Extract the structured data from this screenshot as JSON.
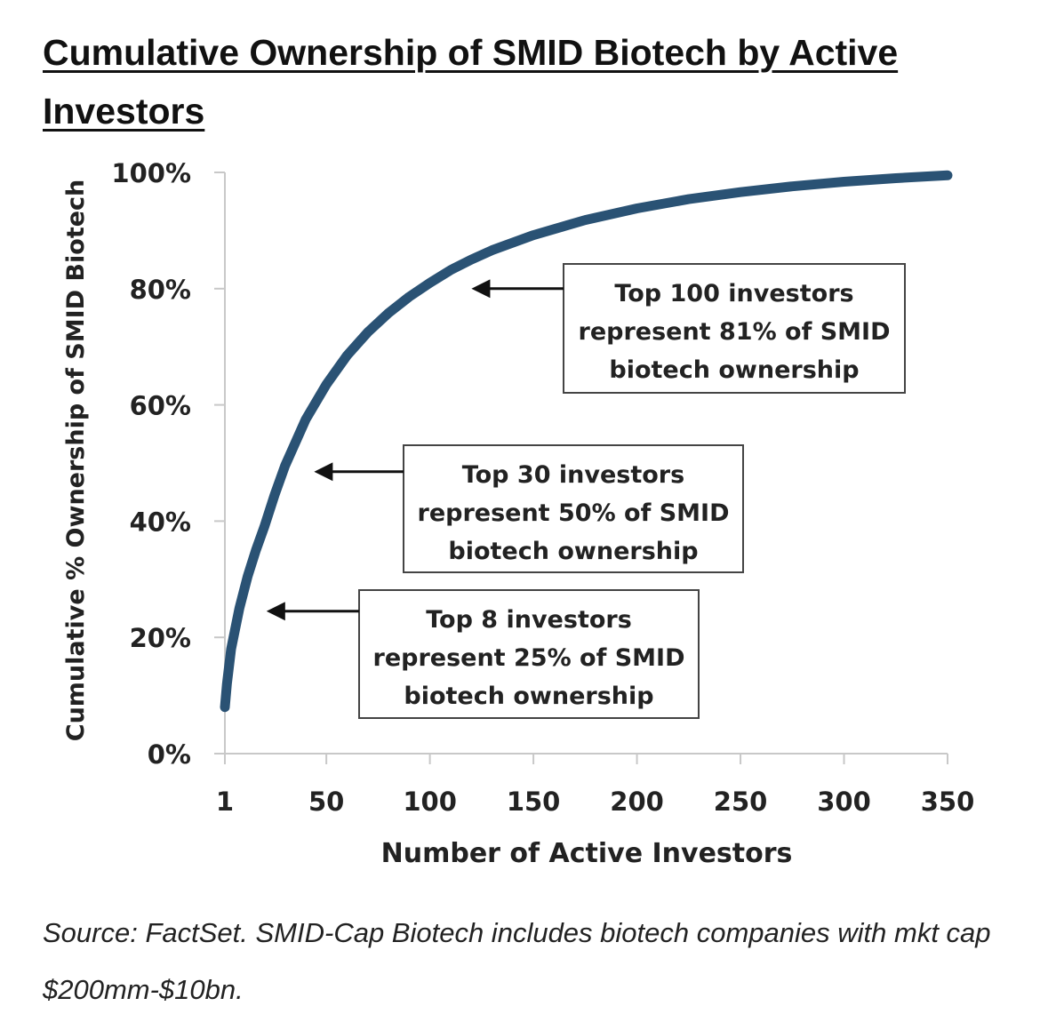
{
  "page": {
    "title": "Cumulative Ownership of SMID Biotech by Active Investors",
    "source_note": "Source: FactSet. SMID-Cap Biotech includes biotech companies with mkt cap $200mm-$10bn."
  },
  "chart_data": {
    "type": "line",
    "title": "Cumulative Ownership of SMID Biotech by Active Investors",
    "xlabel": "Number of Active Investors",
    "ylabel": "Cumulative % Ownership of SMID Biotech",
    "xlim": [
      1,
      350
    ],
    "ylim": [
      0,
      100
    ],
    "x_ticks": [
      1,
      50,
      100,
      150,
      200,
      250,
      300,
      350
    ],
    "x_tick_labels": [
      "1",
      "50",
      "100",
      "150",
      "200",
      "250",
      "300",
      "350"
    ],
    "y_ticks": [
      0,
      20,
      40,
      60,
      80,
      100
    ],
    "y_tick_labels": [
      "0%",
      "20%",
      "40%",
      "60%",
      "80%",
      "100%"
    ],
    "grid": false,
    "line_color": "#2a5274",
    "series": [
      {
        "name": "",
        "x": [
          1,
          2,
          4,
          8,
          12,
          16,
          20,
          25,
          30,
          40,
          50,
          60,
          70,
          80,
          90,
          100,
          110,
          120,
          130,
          150,
          175,
          200,
          225,
          250,
          275,
          300,
          325,
          350
        ],
        "y": [
          8,
          12,
          18,
          25,
          30.5,
          35,
          39,
          44.5,
          49.5,
          57.5,
          63.5,
          68.5,
          72.5,
          75.8,
          78.6,
          81,
          83.2,
          85,
          86.6,
          89.2,
          91.8,
          93.8,
          95.4,
          96.6,
          97.6,
          98.4,
          99,
          99.5
        ]
      }
    ],
    "annotations": [
      {
        "lines": [
          "Top 100 investors",
          "represent 81% of SMID",
          "biotech ownership"
        ],
        "arrow_to": [
          117,
          80
        ]
      },
      {
        "lines": [
          "Top 30 investors",
          "represent 50% of SMID",
          "biotech ownership"
        ],
        "arrow_to": [
          41,
          48.5
        ]
      },
      {
        "lines": [
          "Top 8 investors",
          "represent 25% of SMID",
          "biotech ownership"
        ],
        "arrow_to": [
          18,
          24.5
        ]
      }
    ]
  }
}
